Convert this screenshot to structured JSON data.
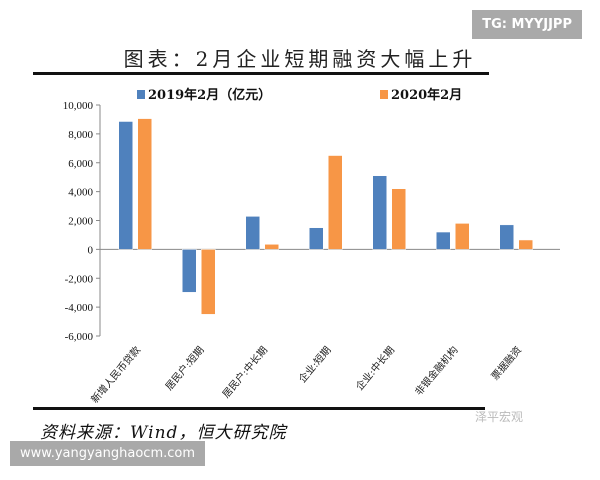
{
  "watermark_top": "TG: MYYJJPP",
  "watermark_bottom": "www.yangyanghaocm.com",
  "wechat_mark": "泽平宏观",
  "source": "资料来源：Wind，恒大研究院",
  "chart_data": {
    "type": "bar",
    "title": "图表：2月企业短期融资大幅上升",
    "categories": [
      "新增人民币贷款",
      "居民户:短期",
      "居民户:中长期",
      "企业:短期",
      "企业:中长期",
      "非银金融机构",
      "票据融资"
    ],
    "series": [
      {
        "name": "2019年2月（亿元）",
        "color": "#4f81bd",
        "values": [
          8858,
          -2975,
          2286,
          1500,
          5100,
          1200,
          1700
        ]
      },
      {
        "name": "2020年2月",
        "color": "#f79646",
        "values": [
          9057,
          -4500,
          350,
          6500,
          4200,
          1800,
          650
        ]
      }
    ],
    "ylim": [
      -6000,
      10000
    ],
    "yticks": [
      "-6,000",
      "-4,000",
      "-2,000",
      "0",
      "2,000",
      "4,000",
      "6,000",
      "8,000",
      "10,000"
    ],
    "grid": false,
    "legend": "top"
  }
}
